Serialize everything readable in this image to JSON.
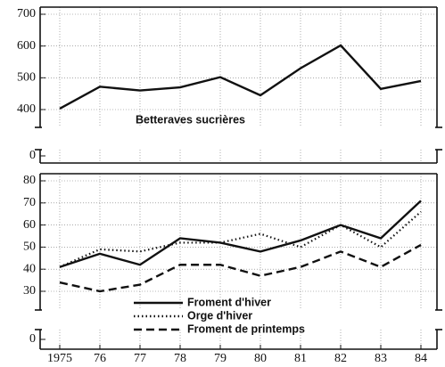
{
  "chart_data": [
    {
      "type": "line",
      "ylim": [
        400,
        700
      ],
      "yticks": [
        0,
        400,
        500,
        600,
        700
      ],
      "axis_break": true,
      "grid": true,
      "annotation": "Betteraves sucrières",
      "series": [
        {
          "name": "Betteraves sucrières",
          "color": "#111111",
          "style": "solid",
          "values": [
            403,
            472,
            460,
            470,
            502,
            445,
            530,
            602,
            465,
            490
          ]
        }
      ]
    },
    {
      "type": "line",
      "ylim": [
        30,
        80
      ],
      "yticks": [
        0,
        30,
        40,
        50,
        60,
        70,
        80
      ],
      "axis_break": true,
      "grid": true,
      "categories": [
        "1975",
        "76",
        "77",
        "78",
        "79",
        "80",
        "81",
        "82",
        "83",
        "84"
      ],
      "series": [
        {
          "name": "Froment d'hiver",
          "color": "#111111",
          "style": "solid",
          "values": [
            41,
            47,
            42,
            54,
            52,
            48,
            53,
            60,
            54,
            71
          ]
        },
        {
          "name": "Orge d'hiver",
          "color": "#111111",
          "style": "dotted",
          "values": [
            41,
            49,
            48,
            52,
            52,
            56,
            50,
            60,
            50,
            66
          ]
        },
        {
          "name": "Froment de printemps",
          "color": "#111111",
          "style": "dashed",
          "values": [
            34,
            30,
            33,
            42,
            42,
            37,
            41,
            48,
            41,
            51
          ]
        }
      ]
    }
  ]
}
